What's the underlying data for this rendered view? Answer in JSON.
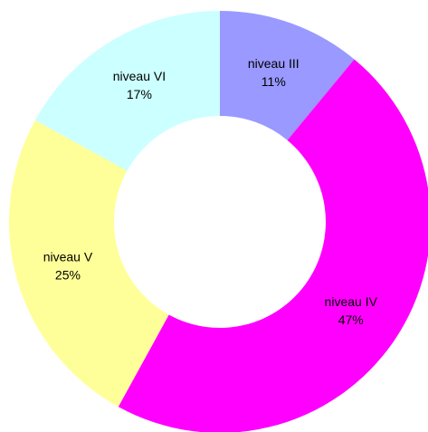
{
  "chart_data": {
    "type": "donut",
    "categories": [
      "niveau III",
      "niveau IV",
      "niveau V",
      "niveau VI"
    ],
    "values": [
      11,
      47,
      25,
      17
    ],
    "value_labels": [
      "11%",
      "47%",
      "25%",
      "17%"
    ],
    "colors": [
      "#9999ff",
      "#ff00ff",
      "#ffff99",
      "#ccffff"
    ]
  }
}
